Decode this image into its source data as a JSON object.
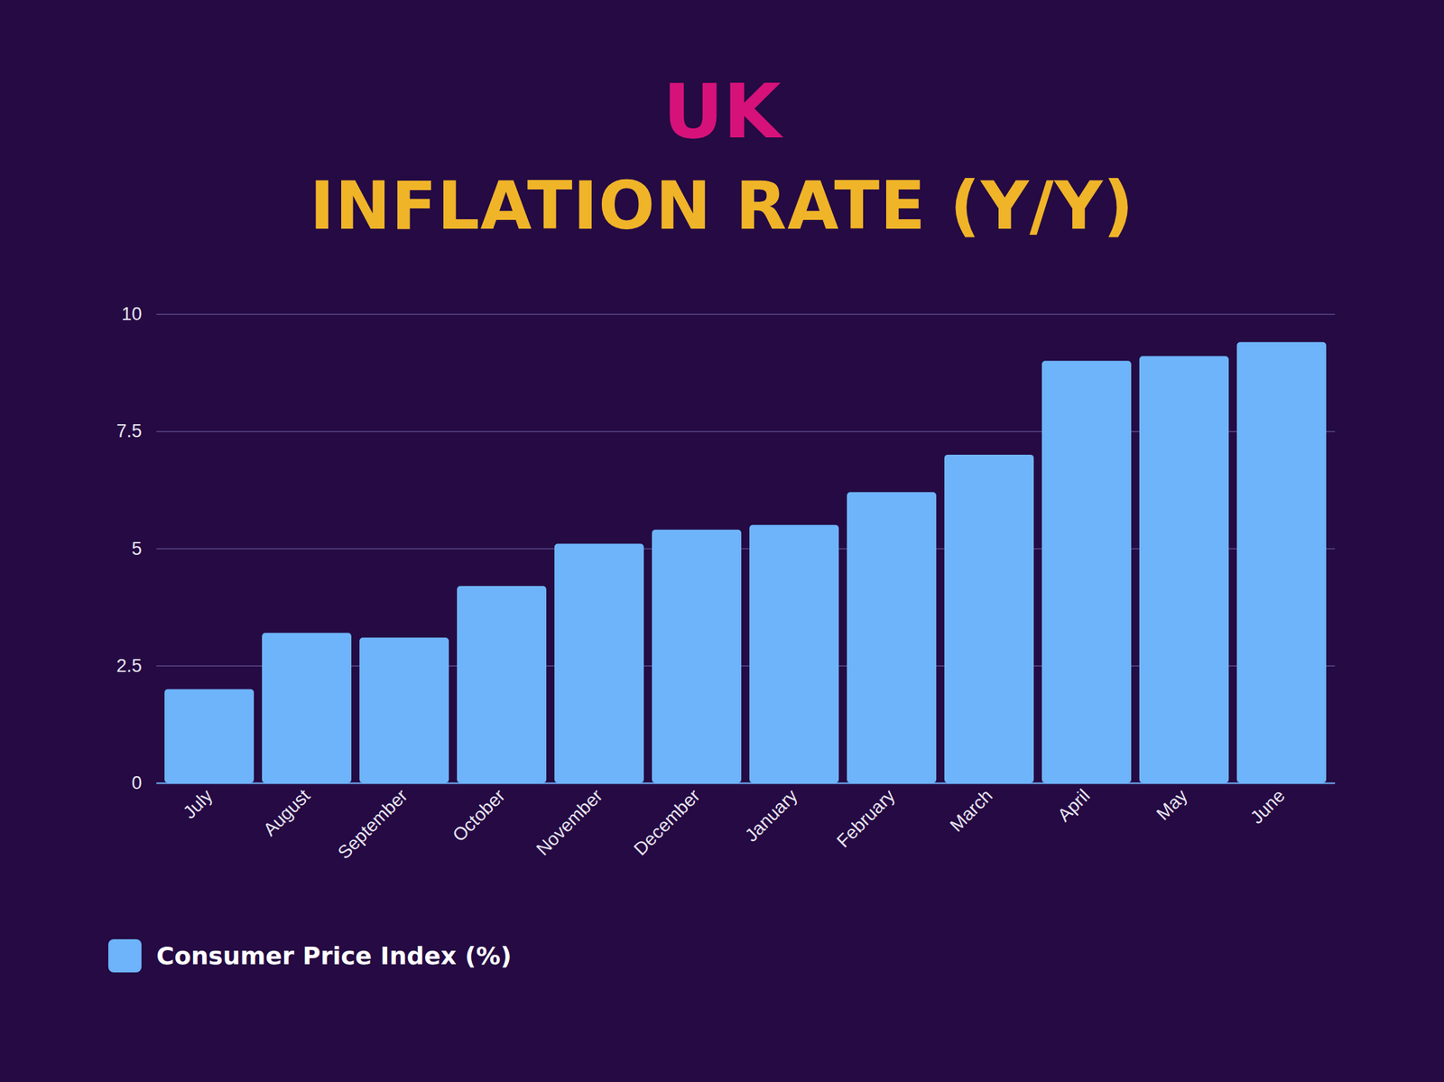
{
  "chart_data": {
    "type": "bar",
    "title": "UK",
    "subtitle": "INFLATION RATE (Y/Y)",
    "categories": [
      "July",
      "August",
      "September",
      "October",
      "November",
      "December",
      "January",
      "February",
      "March",
      "April",
      "May",
      "June"
    ],
    "series": [
      {
        "name": "Consumer Price Index (%)",
        "color": "#6eb4fa",
        "values": [
          2.0,
          3.2,
          3.1,
          4.2,
          5.1,
          5.4,
          5.5,
          6.2,
          7.0,
          9.0,
          9.1,
          9.4
        ]
      }
    ],
    "ylim": [
      0,
      10
    ],
    "yticks": [
      0,
      2.5,
      5,
      7.5,
      10
    ],
    "grid": true,
    "legend": "bottom-left"
  }
}
